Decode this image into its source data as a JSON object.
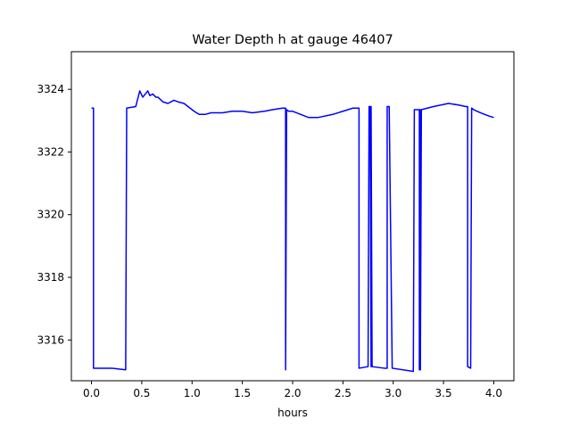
{
  "chart_data": {
    "type": "line",
    "title": "Water Depth h at gauge 46407",
    "xlabel": "hours",
    "ylabel": "",
    "xlim": [
      -0.2,
      4.2
    ],
    "ylim": [
      3314.7,
      3325.2
    ],
    "xticks": [
      0.0,
      0.5,
      1.0,
      1.5,
      2.0,
      2.5,
      3.0,
      3.5,
      4.0
    ],
    "xtick_labels": [
      "0.0",
      "0.5",
      "1.0",
      "1.5",
      "2.0",
      "2.5",
      "3.0",
      "3.5",
      "4.0"
    ],
    "yticks": [
      3316,
      3318,
      3320,
      3322,
      3324
    ],
    "ytick_labels": [
      "3316",
      "3318",
      "3320",
      "3322",
      "3324"
    ],
    "grid": false,
    "series": [
      {
        "color": "#0000ff",
        "x": [
          0.0,
          0.02,
          0.02,
          0.2,
          0.34,
          0.35,
          0.44,
          0.48,
          0.51,
          0.56,
          0.58,
          0.61,
          0.64,
          0.66,
          0.71,
          0.76,
          0.82,
          0.86,
          0.92,
          0.98,
          1.02,
          1.07,
          1.13,
          1.19,
          1.3,
          1.4,
          1.5,
          1.6,
          1.72,
          1.8,
          1.9,
          1.93,
          1.93,
          1.94,
          1.96,
          2.0,
          2.08,
          2.16,
          2.25,
          2.4,
          2.6,
          2.66,
          2.66,
          2.75,
          2.76,
          2.77,
          2.78,
          2.78,
          2.79,
          2.91,
          2.94,
          2.94,
          2.96,
          2.99,
          3.2,
          3.21,
          3.26,
          3.26,
          3.26,
          3.27,
          3.27,
          3.28,
          3.4,
          3.55,
          3.65,
          3.72,
          3.74,
          3.74,
          3.77,
          3.78,
          3.8,
          3.87,
          3.95,
          4.0
        ],
        "y": [
          3323.4,
          3323.4,
          3315.1,
          3315.1,
          3315.05,
          3323.4,
          3323.45,
          3323.95,
          3323.75,
          3323.95,
          3323.8,
          3323.85,
          3323.75,
          3323.75,
          3323.6,
          3323.55,
          3323.65,
          3323.6,
          3323.55,
          3323.4,
          3323.3,
          3323.2,
          3323.2,
          3323.25,
          3323.25,
          3323.3,
          3323.3,
          3323.25,
          3323.3,
          3323.35,
          3323.4,
          3323.4,
          3315.05,
          3323.35,
          3323.3,
          3323.3,
          3323.2,
          3323.1,
          3323.1,
          3323.2,
          3323.4,
          3323.4,
          3315.1,
          3315.15,
          3323.45,
          3323.45,
          3315.15,
          3323.45,
          3315.15,
          3315.1,
          3315.1,
          3323.45,
          3323.45,
          3315.1,
          3315.0,
          3323.35,
          3323.35,
          3315.05,
          3323.35,
          3323.35,
          3315.05,
          3323.35,
          3323.45,
          3323.55,
          3323.5,
          3323.45,
          3323.45,
          3315.15,
          3315.1,
          3323.4,
          3323.35,
          3323.25,
          3323.15,
          3323.1
        ]
      }
    ]
  }
}
